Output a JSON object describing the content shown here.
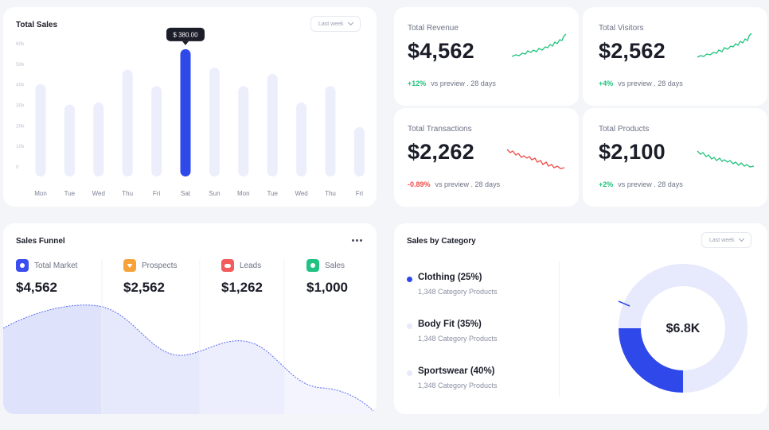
{
  "total_sales": {
    "title": "Total Sales",
    "period": "Last week",
    "tooltip": "$ 380.00",
    "chart_data": {
      "type": "bar",
      "categories": [
        "Mon",
        "Tue",
        "Wed",
        "Thu",
        "Fri",
        "Sat",
        "Sun",
        "Mon",
        "Tue",
        "Wed",
        "Thu",
        "Fri"
      ],
      "values": [
        45,
        35,
        36,
        52,
        44,
        62,
        53,
        44,
        50,
        36,
        44,
        24
      ],
      "highlight_index": 5,
      "y_ticks": [
        "60k",
        "50k",
        "40k",
        "30k",
        "20k",
        "10k",
        "0"
      ],
      "ylim": [
        0,
        60
      ],
      "highlight_color": "#2f48ea",
      "bar_color": "#eceefc"
    }
  },
  "stats": [
    {
      "label": "Total Revenue",
      "value": "$4,562",
      "change": "+12%",
      "trend": "up",
      "note": "vs preview . 28 days"
    },
    {
      "label": "Total Visitors",
      "value": "$2,562",
      "change": "+4%",
      "trend": "up",
      "note": "vs preview . 28 days"
    },
    {
      "label": "Total Transactions",
      "value": "$2,262",
      "change": "-0.89%",
      "trend": "down",
      "note": "vs preview . 28 days"
    },
    {
      "label": "Total Products",
      "value": "$2,100",
      "change": "+2%",
      "trend": "up",
      "note": "vs preview . 28 days"
    }
  ],
  "colors": {
    "positive": "#20c27c",
    "negative": "#f14a4a",
    "accent": "#2f48ea",
    "accent_light": "#e7e9fc"
  },
  "funnel": {
    "title": "Sales Funnel",
    "items": [
      {
        "label": "Total Market",
        "value": "$4,562",
        "icon": "chart-pie-icon",
        "color": "#3b4ef0"
      },
      {
        "label": "Prospects",
        "value": "$2,562",
        "icon": "funnel-icon",
        "color": "#f7a33a"
      },
      {
        "label": "Leads",
        "value": "$1,262",
        "icon": "users-icon",
        "color": "#f25c5c"
      },
      {
        "label": "Sales",
        "value": "$1,000",
        "icon": "check-circle-icon",
        "color": "#22c283"
      }
    ]
  },
  "category": {
    "title": "Sales by Category",
    "period": "Last week",
    "total": "$6.8K",
    "items": [
      {
        "name": "Clothing (25%)",
        "sub": "1,348 Category Products",
        "color": "#2f48ea",
        "share": 25
      },
      {
        "name": "Body Fit (35%)",
        "sub": "1,348 Category Products",
        "color": "#e7e9fc",
        "share": 35
      },
      {
        "name": "Sportswear (40%)",
        "sub": "1,348 Category Products",
        "color": "#e7e9fc",
        "share": 40
      }
    ]
  }
}
